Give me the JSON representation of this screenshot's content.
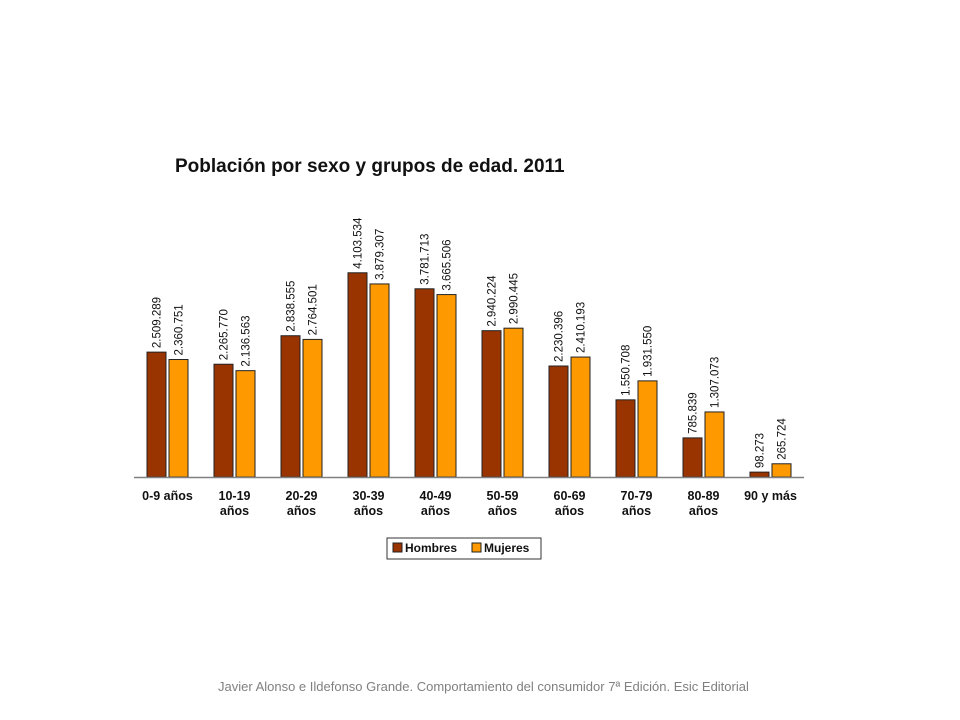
{
  "chart_data": {
    "type": "bar",
    "title": "Población por sexo y grupos de edad. 2011",
    "categories": [
      [
        "0-9 años"
      ],
      [
        "10-19",
        "años"
      ],
      [
        "20-29",
        "años"
      ],
      [
        "30-39",
        "años"
      ],
      [
        "40-49",
        "años"
      ],
      [
        "50-59",
        "años"
      ],
      [
        "60-69",
        "años"
      ],
      [
        "70-79",
        "años"
      ],
      [
        "80-89",
        "años"
      ],
      [
        "90 y más"
      ]
    ],
    "series": [
      {
        "name": "Hombres",
        "color": "#993300",
        "values": [
          2509289,
          2265770,
          2838555,
          4103534,
          3781713,
          2940224,
          2230396,
          1550708,
          785839,
          98273
        ],
        "labels": [
          "2.509.289",
          "2.265.770",
          "2.838.555",
          "4.103.534",
          "3.781.713",
          "2.940.224",
          "2.230.396",
          "1.550.708",
          "785.839",
          "98.273"
        ]
      },
      {
        "name": "Mujeres",
        "color": "#FF9900",
        "values": [
          2360751,
          2136563,
          2764501,
          3879307,
          3665506,
          2990445,
          2410193,
          1931550,
          1307073,
          265724
        ],
        "labels": [
          "2.360.751",
          "2.136.563",
          "2.764.501",
          "3.879.307",
          "3.665.506",
          "2.990.445",
          "2.410.193",
          "1.931.550",
          "1.307.073",
          "265.724"
        ]
      }
    ],
    "ylim": [
      0,
      4300000
    ],
    "grid": false,
    "legend_position": "bottom"
  },
  "footer": {
    "credit": "Javier Alonso e Ildefonso Grande. Comportamiento del consumidor 7ª Edición. Esic Editorial"
  }
}
